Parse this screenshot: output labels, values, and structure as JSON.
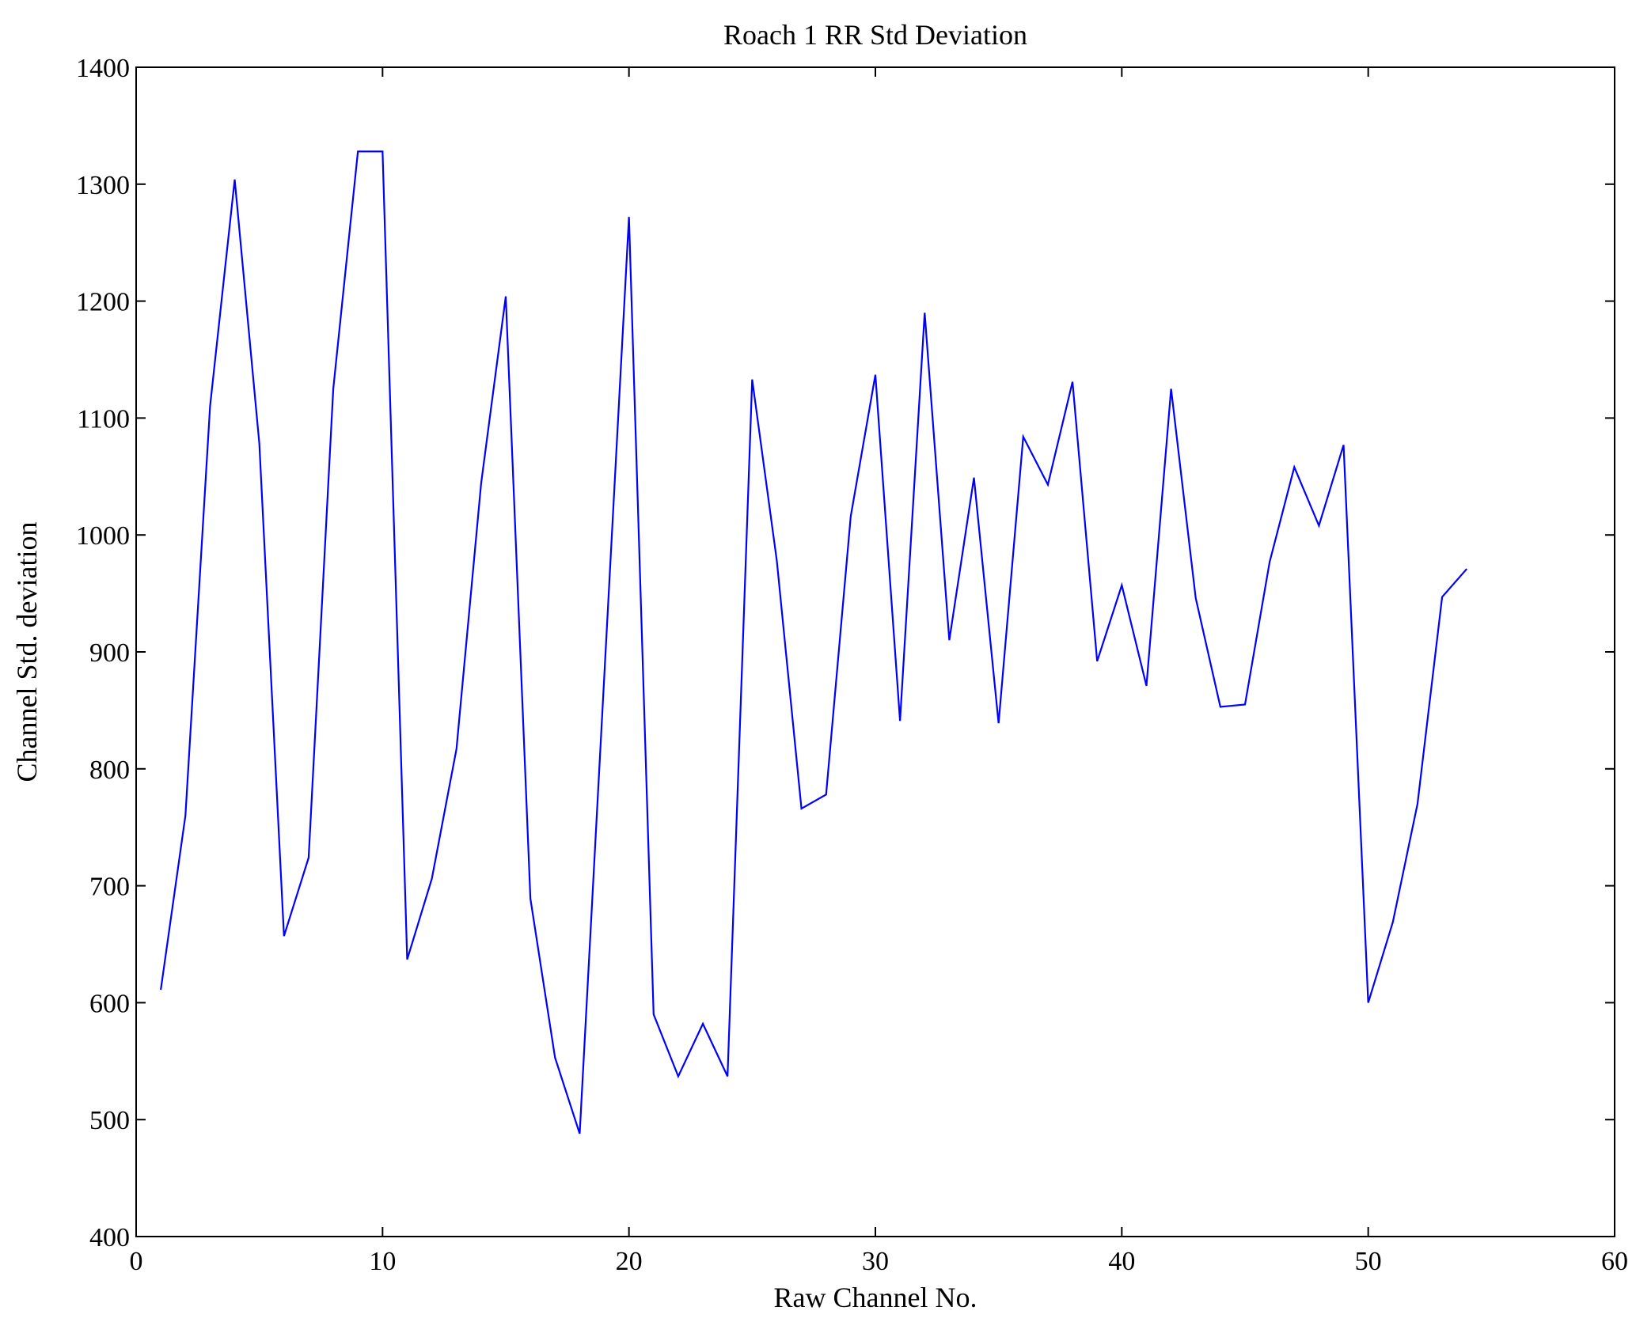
{
  "chart_data": {
    "type": "line",
    "title": "Roach 1 RR Std Deviation",
    "xlabel": "Raw Channel No.",
    "ylabel": "Channel Std. deviation",
    "xlim": [
      0,
      60
    ],
    "ylim": [
      400,
      1400
    ],
    "xticks": [
      0,
      10,
      20,
      30,
      40,
      50,
      60
    ],
    "yticks": [
      400,
      500,
      600,
      700,
      800,
      900,
      1000,
      1100,
      1200,
      1300,
      1400
    ],
    "grid": false,
    "series": [
      {
        "name": "Roach 1 RR",
        "color": "#0000ff",
        "x": [
          1,
          2,
          3,
          4,
          5,
          6,
          7,
          8,
          9,
          10,
          11,
          12,
          13,
          14,
          15,
          16,
          17,
          18,
          19,
          20,
          21,
          22,
          23,
          24,
          25,
          26,
          27,
          28,
          29,
          30,
          31,
          32,
          33,
          34,
          35,
          36,
          37,
          38,
          39,
          40,
          41,
          42,
          43,
          44,
          45,
          46,
          47,
          48,
          49,
          50,
          51,
          52,
          53,
          54
        ],
        "values": [
          611,
          760,
          1110,
          1304,
          1078,
          657,
          724,
          1125,
          1328,
          1328,
          637,
          706,
          817,
          1044,
          1204,
          689,
          553,
          488,
          880,
          1272,
          590,
          537,
          582,
          537,
          1133,
          978,
          766,
          778,
          1016,
          1137,
          841,
          1190,
          910,
          1049,
          839,
          1084,
          1043,
          1131,
          892,
          957,
          871,
          1125,
          946,
          853,
          855,
          977,
          1058,
          1008,
          1077,
          600,
          669,
          770,
          947,
          971
        ]
      }
    ]
  }
}
